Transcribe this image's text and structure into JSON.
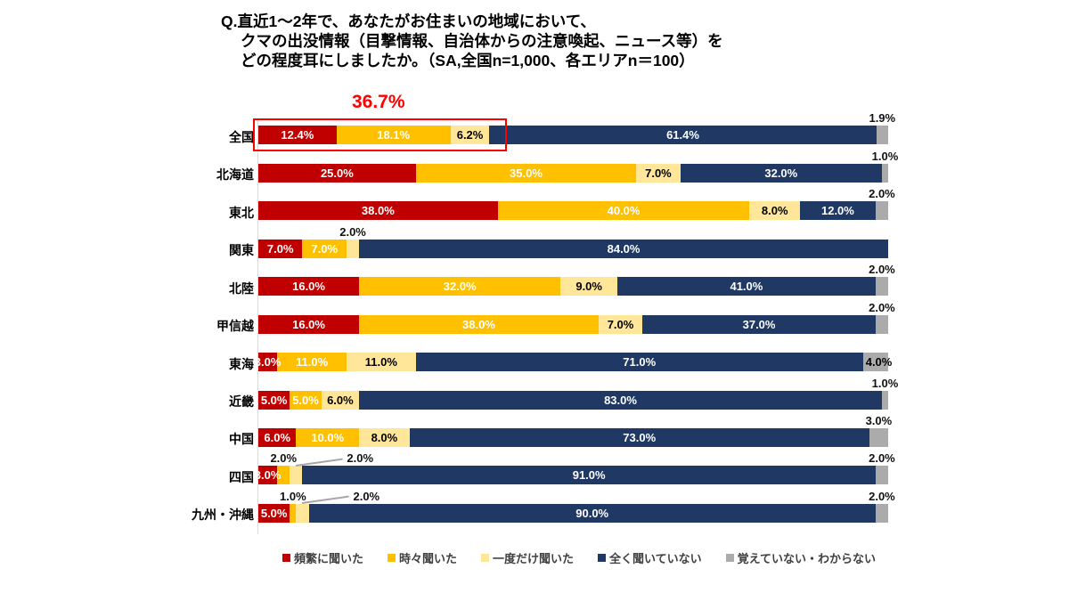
{
  "title": {
    "line1": "Q.直近1～2年で、あなたがお住まいの地域において、",
    "line2": "クマの出没情報（目撃情報、自治体からの注意喚起、ニュース等）を",
    "line3": "どの程度耳にしましたか。（SA,全国n=1,000、各エリアn＝100）"
  },
  "highlight": {
    "row": "全国",
    "label": "36.7%",
    "covers_series": 3,
    "box_color": "#ff0000",
    "text_color": "#ff0000"
  },
  "chart_data": {
    "type": "bar",
    "orientation": "horizontal",
    "stacked": true,
    "unit": "%",
    "xlim": [
      0,
      100
    ],
    "grid": false,
    "legend_position": "bottom",
    "categories": [
      "全国",
      "北海道",
      "東北",
      "関東",
      "北陸",
      "甲信越",
      "東海",
      "近畿",
      "中国",
      "四国",
      "九州・沖縄"
    ],
    "series": [
      {
        "name": "頻繁に聞いた",
        "color": "#c00000",
        "text_color": "#ffffff",
        "values": [
          12.4,
          25.0,
          38.0,
          7.0,
          16.0,
          16.0,
          3.0,
          5.0,
          6.0,
          3.0,
          5.0
        ]
      },
      {
        "name": "時々聞いた",
        "color": "#ffc000",
        "text_color": "#ffffff",
        "values": [
          18.1,
          35.0,
          40.0,
          7.0,
          32.0,
          38.0,
          11.0,
          5.0,
          10.0,
          2.0,
          1.0
        ]
      },
      {
        "name": "一度だけ聞いた",
        "color": "#ffe699",
        "text_color": "#000000",
        "values": [
          6.2,
          7.0,
          8.0,
          2.0,
          9.0,
          7.0,
          11.0,
          6.0,
          8.0,
          2.0,
          2.0
        ]
      },
      {
        "name": "全く聞いていない",
        "color": "#1f3864",
        "text_color": "#ffffff",
        "values": [
          61.4,
          32.0,
          12.0,
          84.0,
          41.0,
          37.0,
          71.0,
          83.0,
          73.0,
          91.0,
          90.0
        ]
      },
      {
        "name": "覚えていない・わからない",
        "color": "#ababab",
        "text_color": "#000000",
        "values": [
          1.9,
          1.0,
          2.0,
          0,
          2.0,
          2.0,
          4.0,
          1.0,
          3.0,
          2.0,
          2.0
        ]
      }
    ],
    "label_placements": [
      [
        "in",
        "in",
        "in",
        "in",
        "above"
      ],
      [
        "in",
        "in",
        "in",
        "in",
        "above"
      ],
      [
        "in",
        "in",
        "in",
        "in",
        "above"
      ],
      [
        "in",
        "in",
        "above",
        "in",
        "none"
      ],
      [
        "in",
        "in",
        "in",
        "in",
        "above"
      ],
      [
        "in",
        "in",
        "in",
        "in",
        "above"
      ],
      [
        "in",
        "in",
        "in",
        "in",
        "side"
      ],
      [
        "in",
        "in",
        "in",
        "in",
        "above"
      ],
      [
        "in",
        "in",
        "in",
        "in",
        "above"
      ],
      [
        "in",
        "above",
        "callout",
        "in",
        "above"
      ],
      [
        "in",
        "above",
        "callout",
        "in",
        "above"
      ]
    ]
  }
}
